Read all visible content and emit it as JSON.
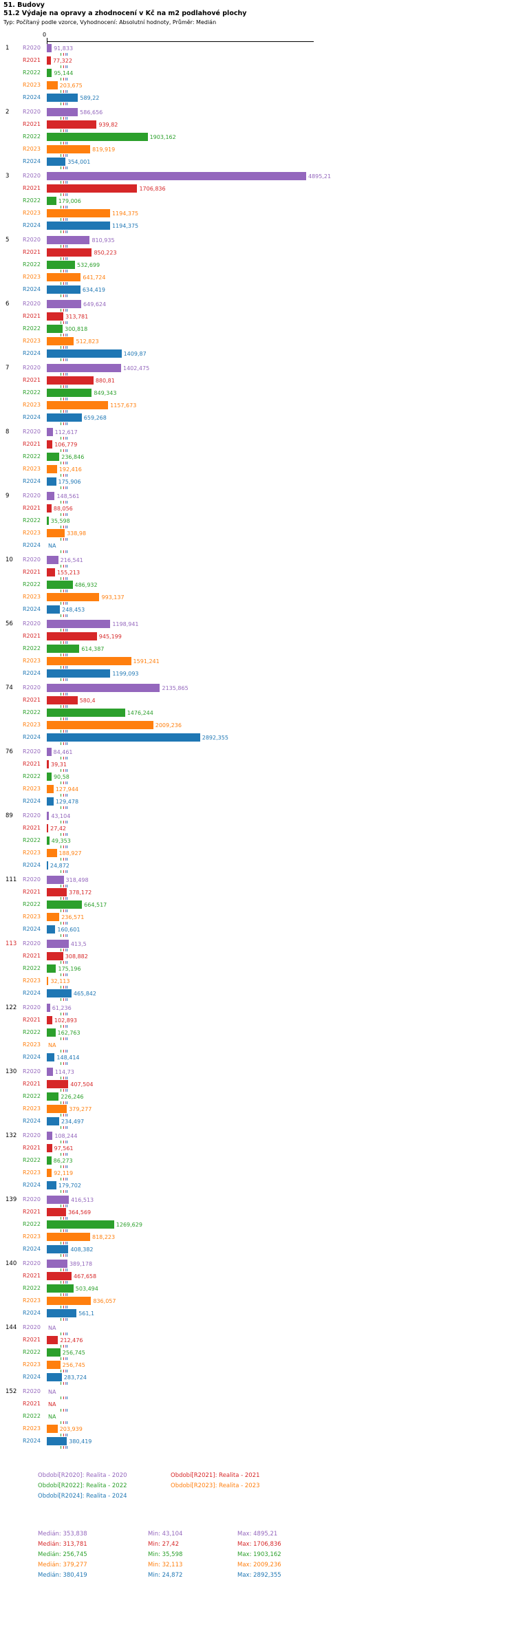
{
  "header": {
    "section_title": "51. Budovy"
  },
  "chart_data": {
    "type": "bar",
    "orientation": "horizontal",
    "title": "51.2 Výdaje na opravy a zhodnocení v Kč na m2 podlahové plochy",
    "meta": "Typ: Počítaný podle vzorce, Vyhodnocení: Absolutní hodnoty, Průměr: Medián",
    "x_axis": {
      "zero_label": "0",
      "min": 0,
      "max": 4895.21
    },
    "years": [
      "R2020",
      "R2021",
      "R2022",
      "R2023",
      "R2024"
    ],
    "series_colors": {
      "R2020": "#9467bd",
      "R2021": "#d62728",
      "R2022": "#2ca02c",
      "R2023": "#ff7f0e",
      "R2024": "#1f77b4"
    },
    "na_text": "NA",
    "highlighted_group": "113",
    "median_markers": [
      353.838,
      313.781,
      256.745,
      379.277,
      380.419
    ],
    "groups": [
      {
        "id": "1",
        "highlight": false,
        "values": [
          "91,833",
          "77,322",
          "95,144",
          "203,675",
          "589,22"
        ]
      },
      {
        "id": "2",
        "highlight": false,
        "values": [
          "586,656",
          "939,82",
          "1903,162",
          "819,919",
          "354,001"
        ]
      },
      {
        "id": "3",
        "highlight": false,
        "values": [
          "4895,21",
          "1706,836",
          "179,006",
          "1194,375",
          "1194,375"
        ]
      },
      {
        "id": "5",
        "highlight": false,
        "values": [
          "810,935",
          "850,223",
          "532,699",
          "641,724",
          "634,419"
        ]
      },
      {
        "id": "6",
        "highlight": false,
        "values": [
          "649,624",
          "313,781",
          "300,818",
          "512,823",
          "1409,87"
        ]
      },
      {
        "id": "7",
        "highlight": false,
        "values": [
          "1402,475",
          "880,81",
          "849,343",
          "1157,673",
          "659,268"
        ]
      },
      {
        "id": "8",
        "highlight": false,
        "values": [
          "112,617",
          "106,779",
          "236,846",
          "192,416",
          "175,906"
        ]
      },
      {
        "id": "9",
        "highlight": false,
        "values": [
          "148,561",
          "88,056",
          "35,598",
          "338,98",
          "NA"
        ]
      },
      {
        "id": "10",
        "highlight": false,
        "values": [
          "216,541",
          "155,213",
          "486,932",
          "993,137",
          "248,453"
        ]
      },
      {
        "id": "56",
        "highlight": false,
        "values": [
          "1198,941",
          "945,199",
          "614,387",
          "1591,241",
          "1199,093"
        ]
      },
      {
        "id": "74",
        "highlight": false,
        "values": [
          "2135,865",
          "580,4",
          "1476,244",
          "2009,236",
          "2892,355"
        ]
      },
      {
        "id": "76",
        "highlight": false,
        "values": [
          "84,461",
          "39,31",
          "90,58",
          "127,944",
          "129,478"
        ]
      },
      {
        "id": "89",
        "highlight": false,
        "values": [
          "43,104",
          "27,42",
          "49,353",
          "188,927",
          "24,872"
        ]
      },
      {
        "id": "111",
        "highlight": false,
        "values": [
          "318,498",
          "378,172",
          "664,517",
          "236,571",
          "160,601"
        ]
      },
      {
        "id": "113",
        "highlight": true,
        "values": [
          "413,5",
          "308,882",
          "175,196",
          "32,113",
          "465,842"
        ]
      },
      {
        "id": "122",
        "highlight": false,
        "values": [
          "61,236",
          "102,893",
          "162,763",
          "NA",
          "148,414"
        ]
      },
      {
        "id": "130",
        "highlight": false,
        "values": [
          "114,73",
          "407,504",
          "226,246",
          "379,277",
          "234,497"
        ]
      },
      {
        "id": "132",
        "highlight": false,
        "values": [
          "108,244",
          "97,561",
          "86,273",
          "92,119",
          "179,702"
        ]
      },
      {
        "id": "139",
        "highlight": false,
        "values": [
          "416,513",
          "364,569",
          "1269,629",
          "818,223",
          "408,382"
        ]
      },
      {
        "id": "140",
        "highlight": false,
        "values": [
          "389,178",
          "467,658",
          "503,494",
          "836,057",
          "561,1"
        ]
      },
      {
        "id": "144",
        "highlight": false,
        "values": [
          "NA",
          "212,476",
          "256,745",
          "256,745",
          "283,724"
        ]
      },
      {
        "id": "152",
        "highlight": false,
        "values": [
          "NA",
          "NA",
          "NA",
          "203,939",
          "380,419"
        ]
      }
    ]
  },
  "legend": {
    "columns": [
      [
        {
          "label": "Období[R2020]: Realita - 2020",
          "color": "#9467bd"
        },
        {
          "label": "Období[R2022]: Realita - 2022",
          "color": "#2ca02c"
        },
        {
          "label": "Období[R2024]: Realita - 2024",
          "color": "#1f77b4"
        }
      ],
      [
        {
          "label": "Období[R2021]: Realita - 2021",
          "color": "#d62728"
        },
        {
          "label": "Období[R2023]: Realita - 2023",
          "color": "#ff7f0e"
        }
      ]
    ]
  },
  "stats": {
    "rows": [
      {
        "median": "Medián: 353,838",
        "min": "Min: 43,104",
        "max": "Max: 4895,21",
        "color": "#9467bd"
      },
      {
        "median": "Medián: 313,781",
        "min": "Min: 27,42",
        "max": "Max: 1706,836",
        "color": "#d62728"
      },
      {
        "median": "Medián: 256,745",
        "min": "Min: 35,598",
        "max": "Max: 1903,162",
        "color": "#2ca02c"
      },
      {
        "median": "Medián: 379,277",
        "min": "Min: 32,113",
        "max": "Max: 2009,236",
        "color": "#ff7f0e"
      },
      {
        "median": "Medián: 380,419",
        "min": "Min: 24,872",
        "max": "Max: 2892,355",
        "color": "#1f77b4"
      }
    ]
  }
}
